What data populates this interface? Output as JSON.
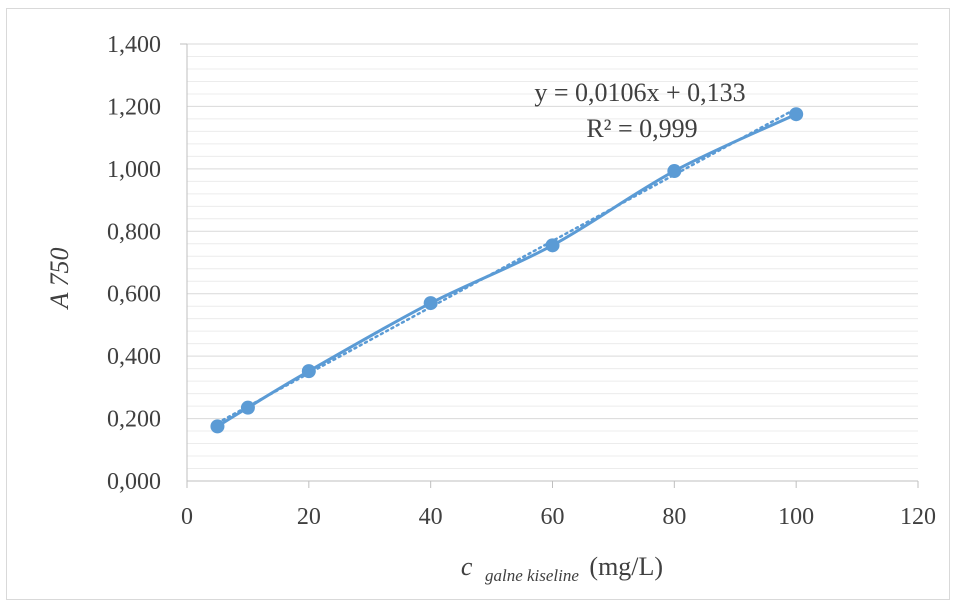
{
  "chart_data": {
    "type": "scatter",
    "x": [
      5,
      10,
      20,
      40,
      60,
      80,
      100
    ],
    "y": [
      0.175,
      0.235,
      0.352,
      0.57,
      0.755,
      0.993,
      1.175
    ],
    "xlim": [
      0,
      120
    ],
    "ylim": [
      0,
      1.4
    ],
    "x_ticks": [
      "0",
      "20",
      "40",
      "60",
      "80",
      "100",
      "120"
    ],
    "y_ticks": [
      "0,000",
      "0,200",
      "0,400",
      "0,600",
      "0,800",
      "1,000",
      "1,200",
      "1,400"
    ],
    "ylabel": "A 750",
    "xlabel": {
      "main": "c",
      "subscript": "galne kiseline",
      "unit": "(mg/L)"
    },
    "trendline": {
      "type": "linear",
      "slope": 0.0106,
      "intercept": 0.133,
      "equation": "y = 0,0106x + 0,133",
      "r2": "R² = 0,999"
    },
    "grid": true,
    "minor_grid": true,
    "legend": "none",
    "colors": {
      "series": "#5b9bd5",
      "grid": "#d9d9d9",
      "minor_grid": "#ececec",
      "text": "#404040"
    }
  }
}
